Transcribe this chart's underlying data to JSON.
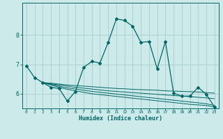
{
  "xlabel": "Humidex (Indice chaleur)",
  "ylabel": "",
  "background_color": "#cdeaea",
  "grid_color": "#aacccc",
  "line_color": "#006666",
  "xlim": [
    -0.5,
    23.5
  ],
  "ylim": [
    5.5,
    9.1
  ],
  "yticks": [
    6,
    7,
    8
  ],
  "xticks": [
    0,
    1,
    2,
    3,
    4,
    5,
    6,
    7,
    8,
    9,
    10,
    11,
    12,
    13,
    14,
    15,
    16,
    17,
    18,
    19,
    20,
    21,
    22,
    23
  ],
  "main_line": {
    "x": [
      0,
      1,
      2,
      3,
      4,
      5,
      6,
      7,
      8,
      9,
      10,
      11,
      12,
      13,
      14,
      15,
      16,
      17,
      18,
      19,
      20,
      21,
      22,
      23
    ],
    "y": [
      6.95,
      6.55,
      6.38,
      6.22,
      6.18,
      5.75,
      6.08,
      6.9,
      7.1,
      7.05,
      7.75,
      8.55,
      8.5,
      8.3,
      7.75,
      7.78,
      6.85,
      7.78,
      6.02,
      5.92,
      5.92,
      6.22,
      5.98,
      5.55
    ]
  },
  "flat_lines": [
    {
      "x": [
        2,
        3,
        4,
        5,
        6,
        7,
        8,
        9,
        10,
        11,
        12,
        13,
        14,
        15,
        16,
        17,
        18,
        19,
        20,
        21,
        22,
        23
      ],
      "y": [
        6.38,
        6.3,
        6.22,
        6.15,
        6.1,
        6.05,
        6.0,
        5.97,
        5.94,
        5.91,
        5.88,
        5.85,
        5.82,
        5.79,
        5.76,
        5.73,
        5.7,
        5.67,
        5.64,
        5.62,
        5.6,
        5.55
      ]
    },
    {
      "x": [
        2,
        3,
        4,
        5,
        6,
        7,
        8,
        9,
        10,
        11,
        12,
        13,
        14,
        15,
        16,
        17,
        18,
        19,
        20,
        21,
        22,
        23
      ],
      "y": [
        6.38,
        6.32,
        6.26,
        6.2,
        6.16,
        6.12,
        6.08,
        6.05,
        6.02,
        5.99,
        5.96,
        5.93,
        5.9,
        5.87,
        5.84,
        5.81,
        5.78,
        5.75,
        5.72,
        5.69,
        5.66,
        5.6
      ]
    },
    {
      "x": [
        2,
        3,
        4,
        5,
        6,
        7,
        8,
        9,
        10,
        11,
        12,
        13,
        14,
        15,
        16,
        17,
        18,
        19,
        20,
        21,
        22,
        23
      ],
      "y": [
        6.38,
        6.34,
        6.3,
        6.26,
        6.22,
        6.19,
        6.16,
        6.13,
        6.1,
        6.08,
        6.06,
        6.04,
        6.02,
        6.0,
        5.98,
        5.96,
        5.94,
        5.92,
        5.9,
        5.88,
        5.86,
        5.83
      ]
    },
    {
      "x": [
        2,
        3,
        4,
        5,
        6,
        7,
        8,
        9,
        10,
        11,
        12,
        13,
        14,
        15,
        16,
        17,
        18,
        19,
        20,
        21,
        22,
        23
      ],
      "y": [
        6.38,
        6.36,
        6.33,
        6.3,
        6.28,
        6.26,
        6.24,
        6.22,
        6.2,
        6.18,
        6.17,
        6.15,
        6.14,
        6.13,
        6.12,
        6.1,
        6.09,
        6.08,
        6.07,
        6.06,
        6.04,
        6.02
      ]
    }
  ]
}
